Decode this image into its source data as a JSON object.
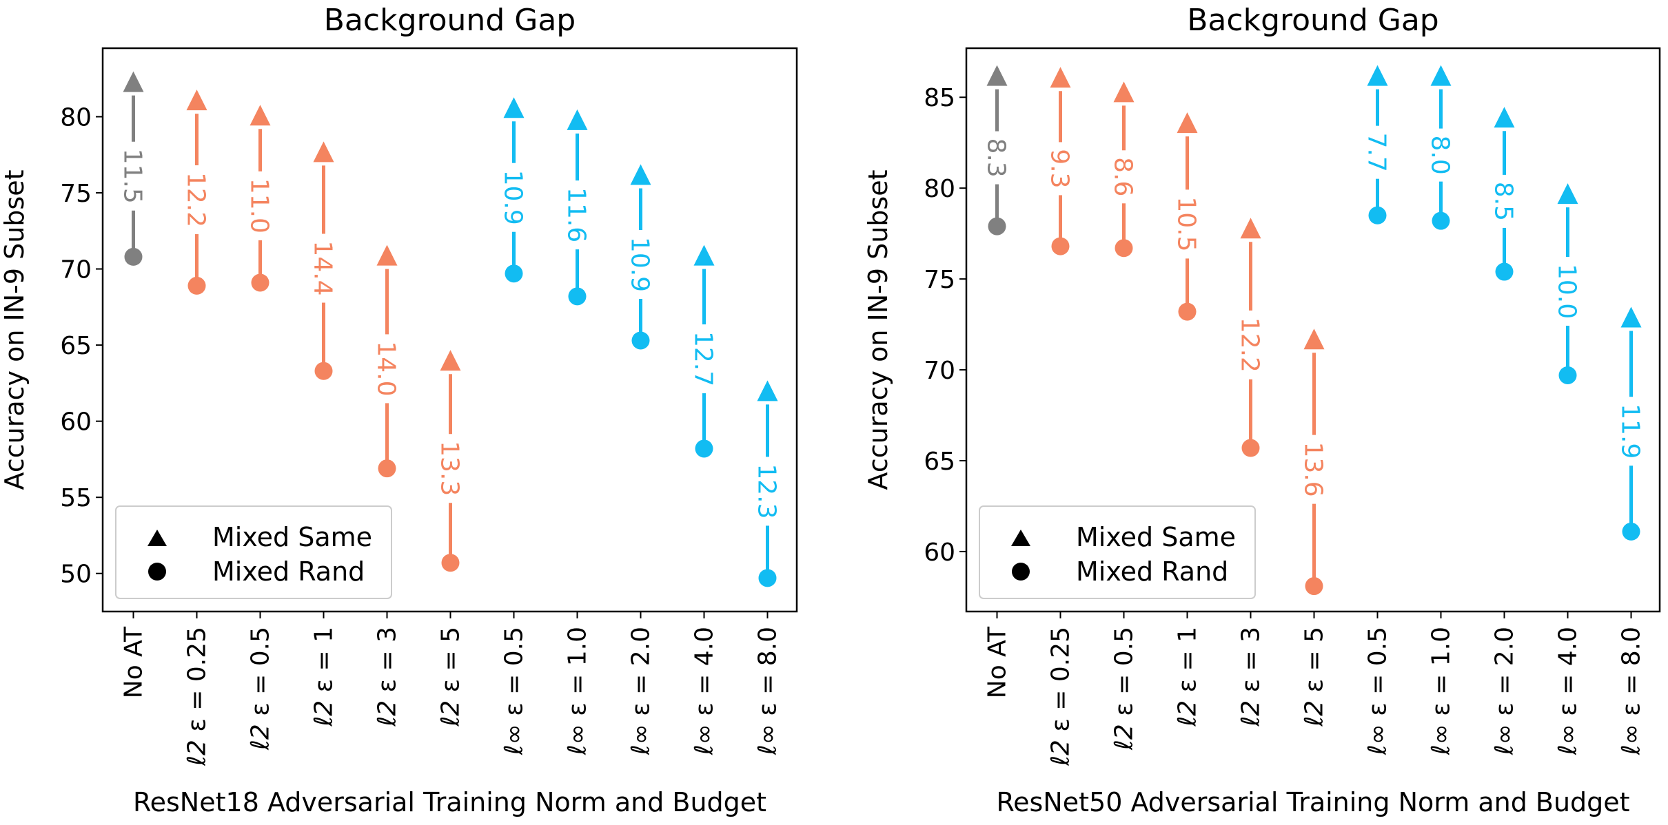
{
  "chart_data": [
    {
      "type": "dumbbell",
      "title": "Background Gap",
      "xlabel": "ResNet18 Adversarial Training Norm and Budget",
      "ylabel": "Accuracy on IN-9 Subset",
      "ylim": [
        47.5,
        84.5
      ],
      "yticks": [
        50,
        55,
        60,
        65,
        70,
        75,
        80
      ],
      "grid": false,
      "legend": {
        "position": "bottom-left",
        "entries": [
          "Mixed Same",
          "Mixed Rand"
        ]
      },
      "categories": [
        {
          "norm": "",
          "eps": "No AT"
        },
        {
          "norm": "ℓ2",
          "eps": "0.25"
        },
        {
          "norm": "ℓ2",
          "eps": "0.5"
        },
        {
          "norm": "ℓ2",
          "eps": "1"
        },
        {
          "norm": "ℓ2",
          "eps": "3"
        },
        {
          "norm": "ℓ2",
          "eps": "5"
        },
        {
          "norm": "ℓ∞",
          "eps": "0.5"
        },
        {
          "norm": "ℓ∞",
          "eps": "1.0"
        },
        {
          "norm": "ℓ∞",
          "eps": "2.0"
        },
        {
          "norm": "ℓ∞",
          "eps": "4.0"
        },
        {
          "norm": "ℓ∞",
          "eps": "8.0"
        }
      ],
      "series": [
        {
          "name": "Mixed Same",
          "values": [
            82.3,
            81.1,
            80.1,
            77.7,
            70.9,
            64.0,
            80.6,
            79.8,
            76.2,
            70.9,
            62.0
          ]
        },
        {
          "name": "Mixed Rand",
          "values": [
            70.8,
            68.9,
            69.1,
            63.3,
            56.9,
            50.7,
            69.7,
            68.2,
            65.3,
            58.2,
            49.7
          ]
        }
      ],
      "gap_labels": [
        "11.5",
        "12.2",
        "11.0",
        "14.4",
        "14.0",
        "13.3",
        "10.9",
        "11.6",
        "10.9",
        "12.7",
        "12.3"
      ],
      "colors": [
        "#808080",
        "#f4845f",
        "#f4845f",
        "#f4845f",
        "#f4845f",
        "#f4845f",
        "#12bcf2",
        "#12bcf2",
        "#12bcf2",
        "#12bcf2",
        "#12bcf2"
      ]
    },
    {
      "type": "dumbbell",
      "title": "Background Gap",
      "xlabel": "ResNet50 Adversarial Training Norm and Budget",
      "ylabel": "Accuracy on IN-9 Subset",
      "ylim": [
        56.7,
        87.7
      ],
      "yticks": [
        60,
        65,
        70,
        75,
        80,
        85
      ],
      "grid": false,
      "legend": {
        "position": "bottom-left",
        "entries": [
          "Mixed Same",
          "Mixed Rand"
        ]
      },
      "categories": [
        {
          "norm": "",
          "eps": "No AT"
        },
        {
          "norm": "ℓ2",
          "eps": "0.25"
        },
        {
          "norm": "ℓ2",
          "eps": "0.5"
        },
        {
          "norm": "ℓ2",
          "eps": "1"
        },
        {
          "norm": "ℓ2",
          "eps": "3"
        },
        {
          "norm": "ℓ2",
          "eps": "5"
        },
        {
          "norm": "ℓ∞",
          "eps": "0.5"
        },
        {
          "norm": "ℓ∞",
          "eps": "1.0"
        },
        {
          "norm": "ℓ∞",
          "eps": "2.0"
        },
        {
          "norm": "ℓ∞",
          "eps": "4.0"
        },
        {
          "norm": "ℓ∞",
          "eps": "8.0"
        }
      ],
      "series": [
        {
          "name": "Mixed Same",
          "values": [
            86.2,
            86.1,
            85.3,
            83.6,
            77.8,
            71.7,
            86.2,
            86.2,
            83.9,
            79.7,
            72.9
          ]
        },
        {
          "name": "Mixed Rand",
          "values": [
            77.9,
            76.8,
            76.7,
            73.2,
            65.7,
            58.1,
            78.5,
            78.2,
            75.4,
            69.7,
            61.1
          ]
        }
      ],
      "gap_labels": [
        "8.3",
        "9.3",
        "8.6",
        "10.5",
        "12.2",
        "13.6",
        "7.7",
        "8.0",
        "8.5",
        "10.0",
        "11.9"
      ],
      "colors": [
        "#808080",
        "#f4845f",
        "#f4845f",
        "#f4845f",
        "#f4845f",
        "#f4845f",
        "#12bcf2",
        "#12bcf2",
        "#12bcf2",
        "#12bcf2",
        "#12bcf2"
      ]
    }
  ]
}
